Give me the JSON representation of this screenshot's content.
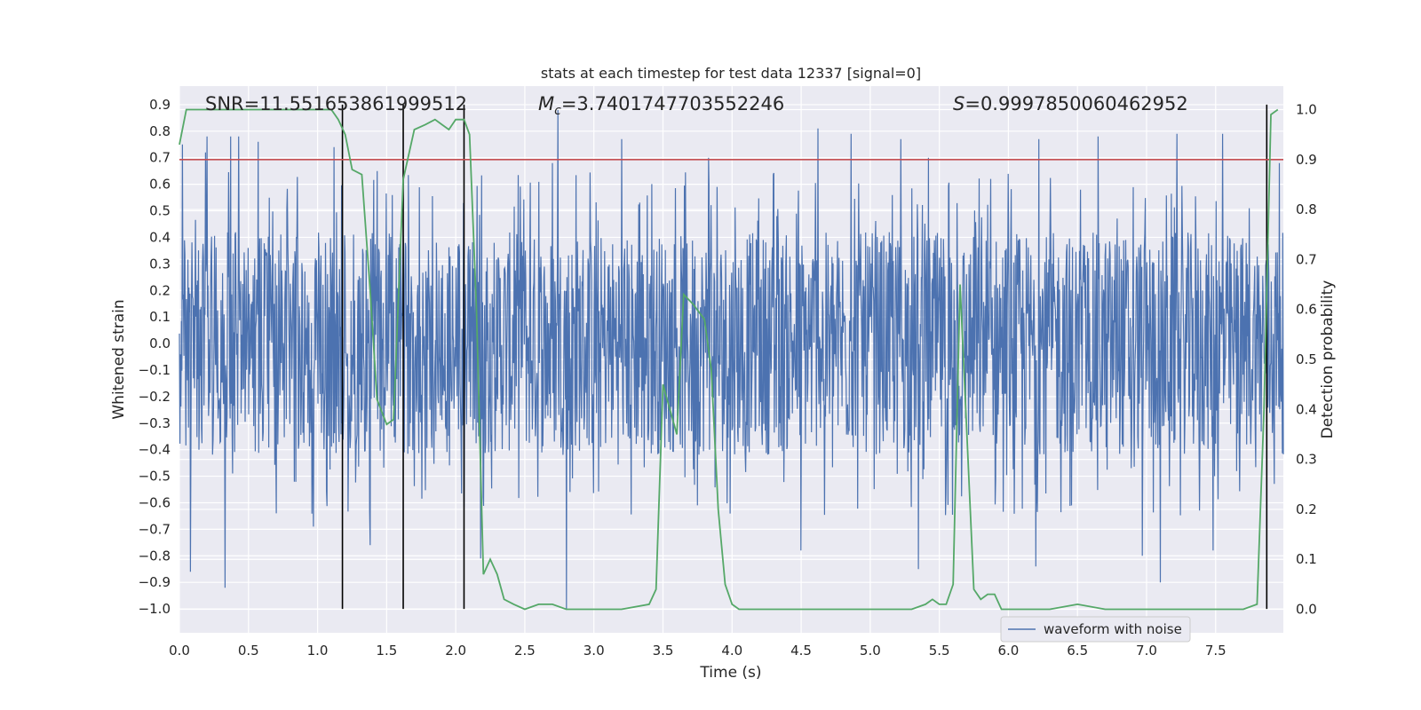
{
  "chart_data": {
    "type": "line",
    "title": "stats at each timestep for test data 12337 [signal=0]",
    "xlabel": "Time (s)",
    "ylabel": "Whitened strain",
    "y2label": "Detection probability",
    "xlim": [
      0.0,
      7.99
    ],
    "ylim": [
      -1.09,
      0.97
    ],
    "y2lim": [
      -0.047,
      1.047
    ],
    "x_ticks": [
      "0.0",
      "0.5",
      "1.0",
      "1.5",
      "2.0",
      "2.5",
      "3.0",
      "3.5",
      "4.0",
      "4.5",
      "5.0",
      "5.5",
      "6.0",
      "6.5",
      "7.0",
      "7.5"
    ],
    "y_ticks": [
      "0.9",
      "0.8",
      "0.7",
      "0.6",
      "0.5",
      "0.4",
      "0.3",
      "0.2",
      "0.1",
      "0.0",
      "−0.1",
      "−0.2",
      "−0.3",
      "−0.4",
      "−0.5",
      "−0.6",
      "−0.7",
      "−0.8",
      "−0.9",
      "−1.0"
    ],
    "y2_ticks": [
      "1.0",
      "0.9",
      "0.8",
      "0.7",
      "0.6",
      "0.5",
      "0.4",
      "0.3",
      "0.2",
      "0.1",
      "0.0"
    ],
    "grid": true,
    "legend_placement": "bottom-right",
    "annotations": {
      "snr_text": "SNR=11.551653861999512",
      "mc_prefix": "M",
      "mc_sub": "c",
      "mc_value": "=3.7401747703552246",
      "s_prefix": "S",
      "s_value": "=0.9997850060462952"
    },
    "threshold": {
      "axis": "right",
      "y": 0.9,
      "color": "#c44e52"
    },
    "vertical_markers": {
      "x": [
        1.18,
        1.62,
        2.06,
        7.87
      ],
      "y_range": [
        -1.0,
        0.9
      ],
      "color": "#000000"
    },
    "series": [
      {
        "name": "waveform with noise",
        "axis": "left",
        "color": "#4c72b0",
        "description_note": "dense noise trace sampled across 0-7.99 s with occasional spikes",
        "sampling": {
          "start": 0.0,
          "end": 7.99,
          "n": 2200,
          "core_band": 0.42
        },
        "spikes_up": [
          [
            0.02,
            0.75
          ],
          [
            0.19,
            0.72
          ],
          [
            0.2,
            0.78
          ],
          [
            0.37,
            0.78
          ],
          [
            0.43,
            0.78
          ],
          [
            0.57,
            0.76
          ],
          [
            1.12,
            0.74
          ],
          [
            1.43,
            0.65
          ],
          [
            2.7,
            0.68
          ],
          [
            2.74,
            0.88
          ],
          [
            3.2,
            0.77
          ],
          [
            3.83,
            0.7
          ],
          [
            4.62,
            0.81
          ],
          [
            4.86,
            0.79
          ],
          [
            5.22,
            0.77
          ],
          [
            5.42,
            0.7
          ],
          [
            6.22,
            0.77
          ],
          [
            6.65,
            0.78
          ],
          [
            7.22,
            0.79
          ],
          [
            7.55,
            0.79
          ],
          [
            7.96,
            0.68
          ]
        ],
        "spikes_down": [
          [
            0.08,
            -0.86
          ],
          [
            0.33,
            -0.92
          ],
          [
            0.7,
            -0.64
          ],
          [
            0.97,
            -0.69
          ],
          [
            1.38,
            -0.76
          ],
          [
            2.18,
            -0.81
          ],
          [
            2.8,
            -1.0
          ],
          [
            4.5,
            -0.78
          ],
          [
            5.35,
            -0.85
          ],
          [
            6.2,
            -0.84
          ],
          [
            6.97,
            -0.8
          ],
          [
            7.1,
            -0.9
          ],
          [
            7.48,
            -0.78
          ]
        ]
      },
      {
        "name": "",
        "axis": "right",
        "color": "#55a868",
        "x": [
          0.0,
          0.05,
          0.12,
          0.2,
          0.35,
          0.55,
          0.8,
          1.0,
          1.1,
          1.15,
          1.2,
          1.25,
          1.32,
          1.38,
          1.43,
          1.5,
          1.55,
          1.62,
          1.7,
          1.78,
          1.85,
          1.9,
          1.95,
          2.0,
          2.06,
          2.1,
          2.15,
          2.2,
          2.25,
          2.3,
          2.35,
          2.42,
          2.5,
          2.6,
          2.7,
          2.8,
          2.9,
          3.0,
          3.2,
          3.4,
          3.45,
          3.5,
          3.6,
          3.65,
          3.72,
          3.8,
          3.85,
          3.9,
          3.95,
          4.0,
          4.05,
          4.15,
          4.3,
          4.5,
          4.7,
          4.9,
          5.1,
          5.3,
          5.4,
          5.45,
          5.5,
          5.55,
          5.6,
          5.65,
          5.7,
          5.75,
          5.8,
          5.85,
          5.9,
          5.95,
          6.0,
          6.1,
          6.3,
          6.5,
          6.7,
          6.9,
          7.1,
          7.3,
          7.5,
          7.7,
          7.8,
          7.85,
          7.9,
          7.95
        ],
        "y": [
          0.93,
          1.0,
          1.0,
          1.0,
          1.0,
          1.0,
          1.0,
          1.0,
          1.0,
          0.98,
          0.95,
          0.88,
          0.87,
          0.64,
          0.42,
          0.37,
          0.38,
          0.86,
          0.96,
          0.97,
          0.98,
          0.97,
          0.96,
          0.98,
          0.98,
          0.95,
          0.6,
          0.07,
          0.1,
          0.07,
          0.02,
          0.01,
          0.0,
          0.01,
          0.01,
          0.0,
          0.0,
          0.0,
          0.0,
          0.01,
          0.04,
          0.45,
          0.35,
          0.63,
          0.61,
          0.58,
          0.48,
          0.2,
          0.05,
          0.01,
          0.0,
          0.0,
          0.0,
          0.0,
          0.0,
          0.0,
          0.0,
          0.0,
          0.01,
          0.02,
          0.01,
          0.01,
          0.05,
          0.65,
          0.35,
          0.04,
          0.02,
          0.03,
          0.03,
          0.0,
          0.0,
          0.0,
          0.0,
          0.01,
          0.0,
          0.0,
          0.0,
          0.0,
          0.0,
          0.0,
          0.01,
          0.4,
          0.99,
          1.0
        ]
      }
    ]
  }
}
